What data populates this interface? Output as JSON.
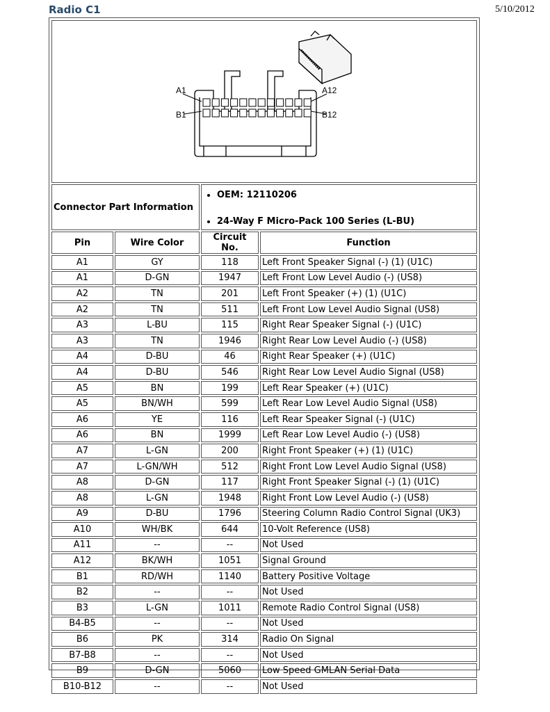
{
  "title": "Radio C1",
  "date": "5/10/2012",
  "diagram": {
    "label_a1": "A1",
    "label_a12": "A12",
    "label_b1": "B1",
    "label_b12": "B12"
  },
  "info": {
    "label": "Connector Part Information",
    "items": [
      "OEM: 12110206",
      "24-Way F Micro-Pack 100 Series (L-BU)"
    ]
  },
  "columns": [
    "Pin",
    "Wire Color",
    "Circuit No.",
    "Function"
  ],
  "rows": [
    [
      "A1",
      "GY",
      "118",
      "Left Front Speaker Signal (-) (1) (U1C)"
    ],
    [
      "A1",
      "D-GN",
      "1947",
      "Left Front Low Level Audio (-) (US8)"
    ],
    [
      "A2",
      "TN",
      "201",
      "Left Front Speaker (+) (1) (U1C)"
    ],
    [
      "A2",
      "TN",
      "511",
      "Left Front Low Level Audio Signal (US8)"
    ],
    [
      "A3",
      "L-BU",
      "115",
      "Right Rear Speaker Signal (-) (U1C)"
    ],
    [
      "A3",
      "TN",
      "1946",
      "Right Rear Low Level Audio (-) (US8)"
    ],
    [
      "A4",
      "D-BU",
      "46",
      "Right Rear Speaker (+) (U1C)"
    ],
    [
      "A4",
      "D-BU",
      "546",
      "Right Rear Low Level Audio Signal (US8)"
    ],
    [
      "A5",
      "BN",
      "199",
      "Left Rear Speaker (+) (U1C)"
    ],
    [
      "A5",
      "BN/WH",
      "599",
      "Left Rear Low Level Audio Signal (US8)"
    ],
    [
      "A6",
      "YE",
      "116",
      "Left Rear Speaker Signal (-) (U1C)"
    ],
    [
      "A6",
      "BN",
      "1999",
      "Left Rear Low Level Audio (-) (US8)"
    ],
    [
      "A7",
      "L-GN",
      "200",
      "Right Front Speaker (+) (1) (U1C)"
    ],
    [
      "A7",
      "L-GN/WH",
      "512",
      "Right Front Low Level Audio Signal (US8)"
    ],
    [
      "A8",
      "D-GN",
      "117",
      "Right Front Speaker Signal (-) (1) (U1C)"
    ],
    [
      "A8",
      "L-GN",
      "1948",
      "Right Front Low Level Audio (-) (US8)"
    ],
    [
      "A9",
      "D-BU",
      "1796",
      "Steering Column Radio Control Signal (UK3)"
    ],
    [
      "A10",
      "WH/BK",
      "644",
      "10-Volt Reference (US8)"
    ],
    [
      "A11",
      "--",
      "--",
      "Not Used"
    ],
    [
      "A12",
      "BK/WH",
      "1051",
      "Signal Ground"
    ],
    [
      "B1",
      "RD/WH",
      "1140",
      "Battery Positive Voltage"
    ],
    [
      "B2",
      "--",
      "--",
      "Not Used"
    ],
    [
      "B3",
      "L-GN",
      "1011",
      "Remote Radio Control Signal (US8)"
    ],
    [
      "B4-B5",
      "--",
      "--",
      "Not Used"
    ],
    [
      "B6",
      "PK",
      "314",
      "Radio On Signal"
    ],
    [
      "B7-B8",
      "--",
      "--",
      "Not Used"
    ],
    [
      "B9",
      "D-GN",
      "5060",
      "Low Speed GMLAN Serial Data"
    ],
    [
      "B10-B12",
      "--",
      "--",
      "Not Used"
    ]
  ]
}
